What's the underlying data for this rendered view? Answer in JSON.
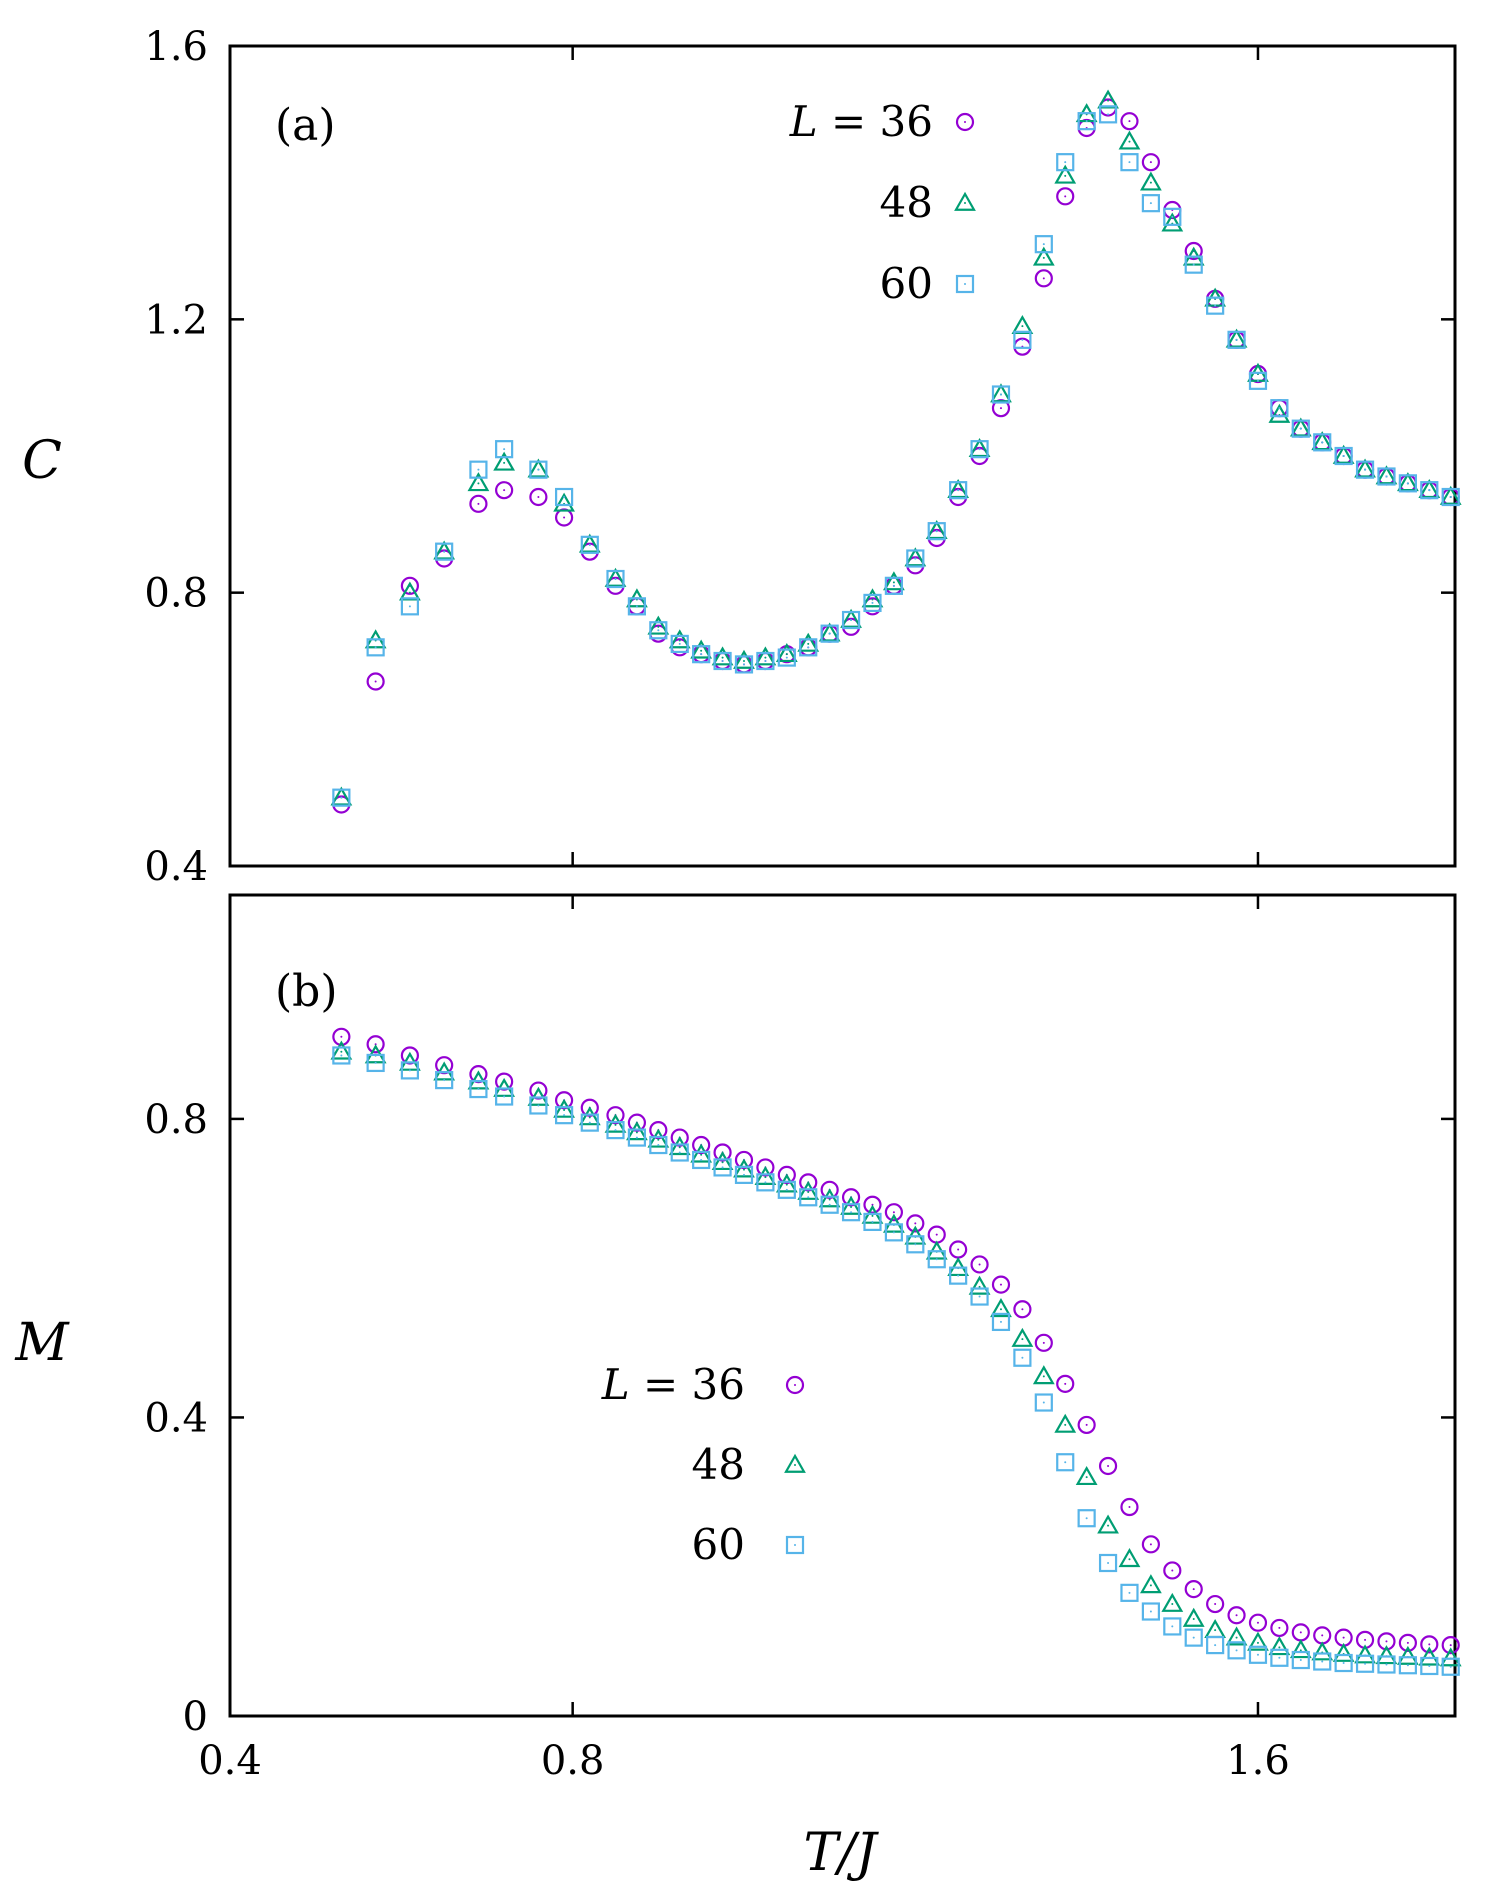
{
  "colors": {
    "L36": "#9400d3",
    "L48": "#009e73",
    "L60": "#56b4e9",
    "axis": "#000000"
  },
  "chart_data": [
    {
      "type": "scatter",
      "panel": "(a)",
      "xlabel": "T/J",
      "ylabel": "C",
      "xlim": [
        0.4,
        1.83
      ],
      "ylim": [
        0.4,
        1.6
      ],
      "xticks": [
        "0.4",
        "0.8",
        "1.6"
      ],
      "xtick_values": [
        0.4,
        0.8,
        1.6
      ],
      "yticks": [
        "0.4",
        "0.8",
        "1.2",
        "1.6"
      ],
      "ytick_values": [
        0.4,
        0.8,
        1.2,
        1.6
      ],
      "legend": {
        "position": "top-center",
        "prefix": "L = ",
        "entries": [
          "36",
          "48",
          "60"
        ]
      },
      "x": [
        0.53,
        0.57,
        0.61,
        0.65,
        0.69,
        0.72,
        0.76,
        0.79,
        0.82,
        0.85,
        0.875,
        0.9,
        0.925,
        0.95,
        0.975,
        1.0,
        1.025,
        1.05,
        1.075,
        1.1,
        1.125,
        1.15,
        1.175,
        1.2,
        1.225,
        1.25,
        1.275,
        1.3,
        1.325,
        1.35,
        1.375,
        1.4,
        1.425,
        1.45,
        1.475,
        1.5,
        1.525,
        1.55,
        1.575,
        1.6,
        1.625,
        1.65,
        1.675,
        1.7,
        1.725,
        1.75,
        1.775,
        1.8,
        1.825
      ],
      "series": [
        {
          "name": "36",
          "marker": "circle",
          "color": "#9400d3",
          "values": [
            0.49,
            0.67,
            0.81,
            0.85,
            0.93,
            0.95,
            0.94,
            0.91,
            0.86,
            0.81,
            0.78,
            0.74,
            0.72,
            0.71,
            0.7,
            0.695,
            0.7,
            0.71,
            0.72,
            0.74,
            0.75,
            0.78,
            0.81,
            0.84,
            0.88,
            0.94,
            1.0,
            1.07,
            1.16,
            1.26,
            1.38,
            1.48,
            1.51,
            1.49,
            1.43,
            1.36,
            1.3,
            1.23,
            1.17,
            1.12,
            1.07,
            1.04,
            1.02,
            1.0,
            0.98,
            0.97,
            0.96,
            0.95,
            0.94
          ]
        },
        {
          "name": "48",
          "marker": "triangle",
          "color": "#009e73",
          "values": [
            0.5,
            0.73,
            0.8,
            0.86,
            0.96,
            0.99,
            0.98,
            0.93,
            0.87,
            0.82,
            0.79,
            0.75,
            0.73,
            0.715,
            0.705,
            0.7,
            0.705,
            0.71,
            0.725,
            0.74,
            0.76,
            0.79,
            0.815,
            0.85,
            0.89,
            0.95,
            1.01,
            1.09,
            1.19,
            1.29,
            1.41,
            1.5,
            1.52,
            1.46,
            1.4,
            1.34,
            1.29,
            1.23,
            1.17,
            1.12,
            1.06,
            1.04,
            1.02,
            1.0,
            0.98,
            0.97,
            0.96,
            0.95,
            0.94
          ]
        },
        {
          "name": "60",
          "marker": "square",
          "color": "#56b4e9",
          "values": [
            0.5,
            0.72,
            0.78,
            0.86,
            0.98,
            1.01,
            0.98,
            0.94,
            0.87,
            0.82,
            0.78,
            0.745,
            0.725,
            0.71,
            0.7,
            0.695,
            0.7,
            0.705,
            0.72,
            0.74,
            0.76,
            0.785,
            0.81,
            0.85,
            0.89,
            0.95,
            1.01,
            1.09,
            1.17,
            1.31,
            1.43,
            1.49,
            1.5,
            1.43,
            1.37,
            1.35,
            1.28,
            1.22,
            1.17,
            1.11,
            1.07,
            1.04,
            1.02,
            1.0,
            0.98,
            0.97,
            0.96,
            0.95,
            0.94
          ]
        }
      ]
    },
    {
      "type": "scatter",
      "panel": "(b)",
      "xlabel": "T/J",
      "ylabel": "M",
      "xlim": [
        0.4,
        1.83
      ],
      "ylim": [
        0.0,
        1.1
      ],
      "xticks": [
        "0.4",
        "0.8",
        "1.6"
      ],
      "xtick_values": [
        0.4,
        0.8,
        1.6
      ],
      "yticks": [
        "0",
        "0.4",
        "0.8"
      ],
      "ytick_values": [
        0.0,
        0.4,
        0.8
      ],
      "legend": {
        "position": "bottom-center",
        "prefix": "L = ",
        "entries": [
          "36",
          "48",
          "60"
        ]
      },
      "x": [
        0.53,
        0.57,
        0.61,
        0.65,
        0.69,
        0.72,
        0.76,
        0.79,
        0.82,
        0.85,
        0.875,
        0.9,
        0.925,
        0.95,
        0.975,
        1.0,
        1.025,
        1.05,
        1.075,
        1.1,
        1.125,
        1.15,
        1.175,
        1.2,
        1.225,
        1.25,
        1.275,
        1.3,
        1.325,
        1.35,
        1.375,
        1.4,
        1.425,
        1.45,
        1.475,
        1.5,
        1.525,
        1.55,
        1.575,
        1.6,
        1.625,
        1.65,
        1.675,
        1.7,
        1.725,
        1.75,
        1.775,
        1.8,
        1.825
      ],
      "series": [
        {
          "name": "36",
          "marker": "circle",
          "color": "#9400d3",
          "values": [
            0.91,
            0.9,
            0.885,
            0.872,
            0.86,
            0.85,
            0.838,
            0.825,
            0.815,
            0.805,
            0.795,
            0.785,
            0.775,
            0.765,
            0.755,
            0.745,
            0.735,
            0.725,
            0.715,
            0.705,
            0.695,
            0.685,
            0.675,
            0.66,
            0.645,
            0.625,
            0.605,
            0.578,
            0.545,
            0.5,
            0.445,
            0.39,
            0.335,
            0.28,
            0.23,
            0.195,
            0.17,
            0.15,
            0.135,
            0.125,
            0.118,
            0.112,
            0.108,
            0.105,
            0.102,
            0.1,
            0.098,
            0.096,
            0.095
          ]
        },
        {
          "name": "48",
          "marker": "triangle",
          "color": "#009e73",
          "values": [
            0.89,
            0.885,
            0.875,
            0.862,
            0.85,
            0.84,
            0.828,
            0.812,
            0.802,
            0.792,
            0.782,
            0.772,
            0.762,
            0.752,
            0.742,
            0.732,
            0.722,
            0.712,
            0.702,
            0.692,
            0.682,
            0.67,
            0.658,
            0.642,
            0.622,
            0.6,
            0.575,
            0.545,
            0.505,
            0.455,
            0.39,
            0.32,
            0.255,
            0.21,
            0.175,
            0.15,
            0.13,
            0.115,
            0.105,
            0.098,
            0.092,
            0.088,
            0.085,
            0.083,
            0.081,
            0.08,
            0.079,
            0.078,
            0.077
          ]
        },
        {
          "name": "60",
          "marker": "square",
          "color": "#56b4e9",
          "values": [
            0.885,
            0.875,
            0.865,
            0.852,
            0.84,
            0.83,
            0.818,
            0.805,
            0.795,
            0.785,
            0.775,
            0.765,
            0.755,
            0.745,
            0.735,
            0.725,
            0.715,
            0.705,
            0.695,
            0.685,
            0.675,
            0.662,
            0.648,
            0.632,
            0.612,
            0.59,
            0.562,
            0.528,
            0.48,
            0.42,
            0.34,
            0.265,
            0.205,
            0.165,
            0.14,
            0.12,
            0.105,
            0.095,
            0.088,
            0.082,
            0.078,
            0.075,
            0.073,
            0.071,
            0.07,
            0.069,
            0.068,
            0.067,
            0.066
          ]
        }
      ]
    }
  ]
}
